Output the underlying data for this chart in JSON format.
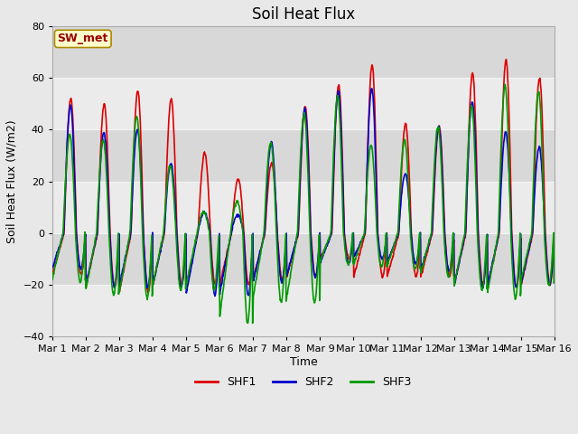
{
  "title": "Soil Heat Flux",
  "ylabel": "Soil Heat Flux (W/m2)",
  "xlabel": "Time",
  "ylim": [
    -40,
    80
  ],
  "fig_bg_color": "#e8e8e8",
  "plot_bg_color": "#e0e0e0",
  "grid_color": "#f0f0f0",
  "series": [
    "SHF1",
    "SHF2",
    "SHF3"
  ],
  "colors": [
    "#dd0000",
    "#0000cc",
    "#009900"
  ],
  "annotation_text": "SW_met",
  "annotation_bg": "#ffffcc",
  "annotation_border": "#aa8800",
  "annotation_text_color": "#990000",
  "xtick_labels": [
    "Mar 1",
    "Mar 2",
    "Mar 3",
    "Mar 4",
    "Mar 5",
    "Mar 6",
    "Mar 7",
    "Mar 8",
    "Mar 9",
    "Mar 10",
    "Mar 11",
    "Mar 12",
    "Mar 13",
    "Mar 14",
    "Mar 15",
    "Mar 16"
  ],
  "days": 15,
  "pts_per_day": 96,
  "title_fontsize": 12,
  "label_fontsize": 9,
  "tick_fontsize": 8,
  "legend_fontsize": 9,
  "line_width": 1.2
}
